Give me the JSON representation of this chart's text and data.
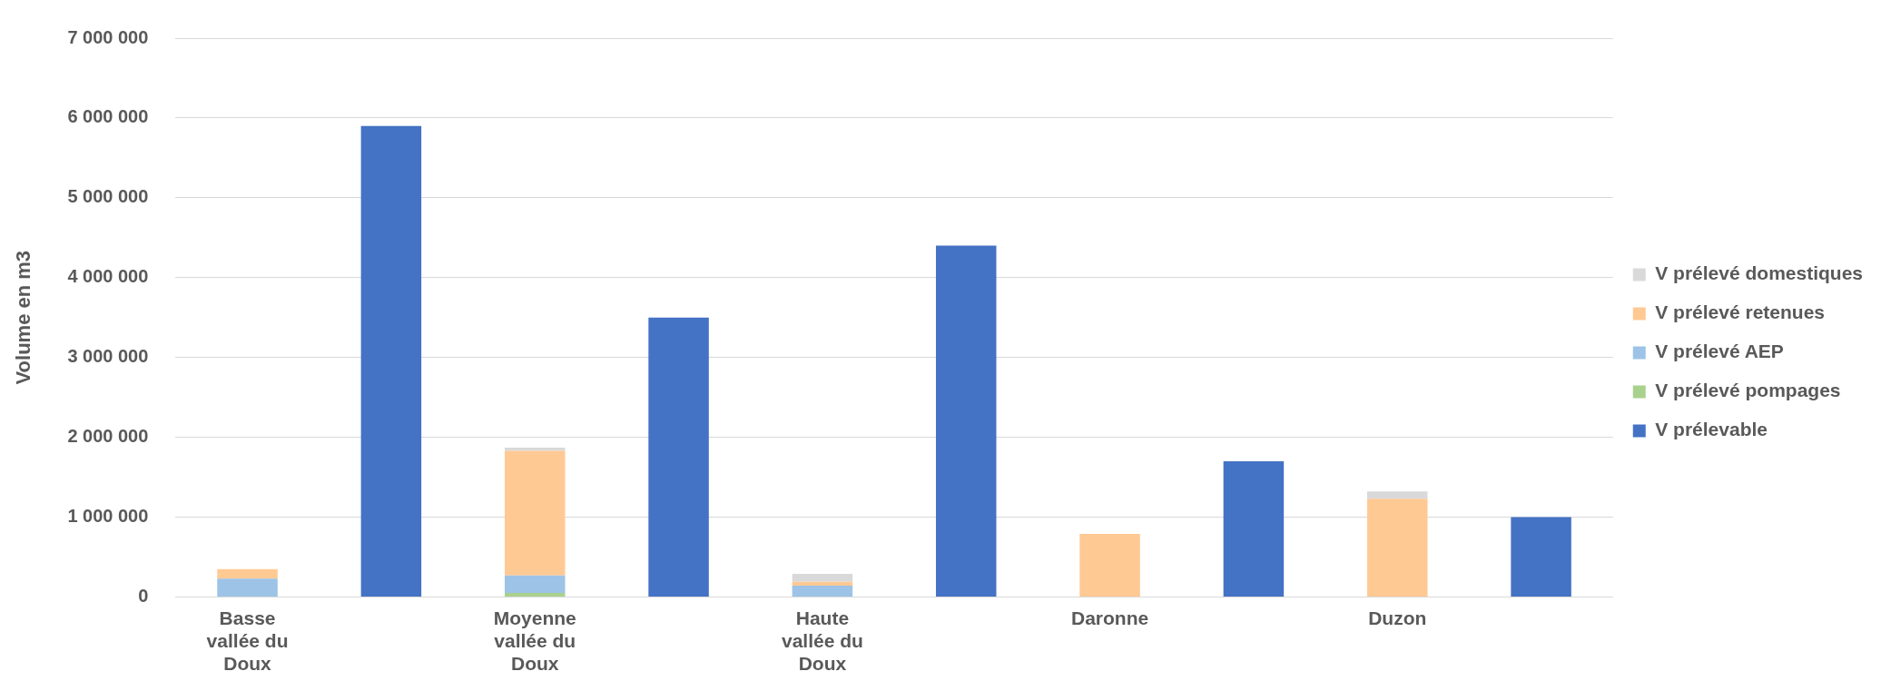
{
  "chart_data": {
    "type": "bar",
    "ylabel": "Volume en m3",
    "stacked": true,
    "grid": "y",
    "legend": "right",
    "categories": [
      "Basse vallée du Doux",
      null,
      "Moyenne vallée du Doux",
      null,
      "Haute vallée du Doux",
      null,
      "Daronne",
      null,
      "Duzon",
      null
    ],
    "series": [
      {
        "name": "V prélevable",
        "color": "#4472c4",
        "values": [
          null,
          5900000,
          null,
          3500000,
          null,
          4400000,
          null,
          1700000,
          null,
          1000000
        ]
      },
      {
        "name": "V prélevé pompages",
        "color": "#a9d18e",
        "values": [
          0,
          null,
          50000,
          null,
          0,
          null,
          0,
          null,
          0,
          null
        ]
      },
      {
        "name": "V prélevé AEP",
        "color": "#9dc3e6",
        "values": [
          230000,
          null,
          220000,
          null,
          140000,
          null,
          0,
          null,
          0,
          null
        ]
      },
      {
        "name": "V prélevé retenues",
        "color": "#ffc994",
        "values": [
          120000,
          null,
          1560000,
          null,
          50000,
          null,
          790000,
          null,
          1230000,
          null
        ]
      },
      {
        "name": "V prélevé domestiques",
        "color": "#d9d9d9",
        "values": [
          0,
          null,
          40000,
          null,
          100000,
          null,
          0,
          null,
          90000,
          null
        ]
      }
    ],
    "ylim": [
      0,
      7000000
    ],
    "yticks": [
      {
        "value": 0,
        "label": "0"
      },
      {
        "value": 1000000,
        "label": "1 000 000"
      },
      {
        "value": 2000000,
        "label": "2 000 000"
      },
      {
        "value": 3000000,
        "label": "3 000 000"
      },
      {
        "value": 4000000,
        "label": "4 000 000"
      },
      {
        "value": 5000000,
        "label": "5 000 000"
      },
      {
        "value": 6000000,
        "label": "6 000 000"
      },
      {
        "value": 7000000,
        "label": "7 000 000"
      }
    ]
  }
}
